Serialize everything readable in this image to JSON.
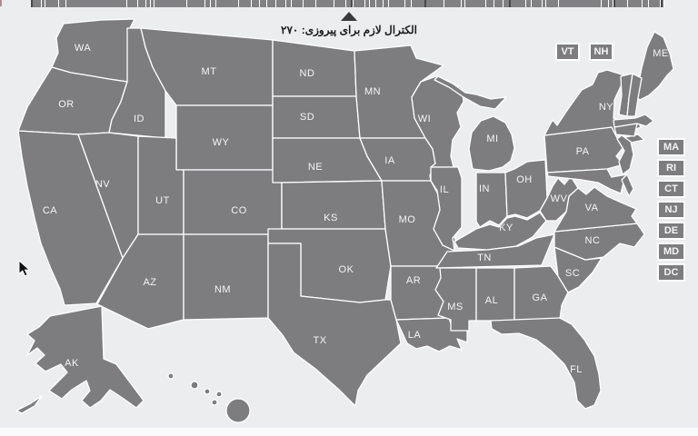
{
  "page": {
    "background": "#ecedee"
  },
  "electoral_bar": {
    "total_ev": 538,
    "colors": {
      "segment": "#818184",
      "gap": "#ffffff",
      "dark_tick": "#4a4a4c",
      "fragment": "#a98f90"
    },
    "dark_ticks_ev": [
      0,
      272,
      334,
      406,
      495,
      535
    ],
    "segments": [
      {
        "state": "AL",
        "ev": 9
      },
      {
        "state": "AK",
        "ev": 3
      },
      {
        "state": "AZ",
        "ev": 11
      },
      {
        "state": "AR",
        "ev": 6
      },
      {
        "state": "CA",
        "ev": 55
      },
      {
        "state": "CO",
        "ev": 9
      },
      {
        "state": "CT",
        "ev": 7
      },
      {
        "state": "DE",
        "ev": 3
      },
      {
        "state": "DC",
        "ev": 3
      },
      {
        "state": "FL",
        "ev": 29
      },
      {
        "state": "GA",
        "ev": 16
      },
      {
        "state": "HI",
        "ev": 4
      },
      {
        "state": "ID",
        "ev": 4
      },
      {
        "state": "IL",
        "ev": 20
      },
      {
        "state": "IN",
        "ev": 11
      },
      {
        "state": "IA",
        "ev": 6
      },
      {
        "state": "KS",
        "ev": 6
      },
      {
        "state": "KY",
        "ev": 8
      },
      {
        "state": "LA",
        "ev": 8
      },
      {
        "state": "ME",
        "ev": 4
      },
      {
        "state": "MD",
        "ev": 10
      },
      {
        "state": "MA",
        "ev": 11
      },
      {
        "state": "MI",
        "ev": 16
      },
      {
        "state": "MN",
        "ev": 10
      },
      {
        "state": "MS",
        "ev": 6
      },
      {
        "state": "MO",
        "ev": 10
      },
      {
        "state": "MT",
        "ev": 3
      },
      {
        "state": "NE",
        "ev": 5
      },
      {
        "state": "NV",
        "ev": 6
      },
      {
        "state": "NH",
        "ev": 4
      },
      {
        "state": "NJ",
        "ev": 14
      },
      {
        "state": "NM",
        "ev": 5
      },
      {
        "state": "NY",
        "ev": 29
      },
      {
        "state": "NC",
        "ev": 15
      },
      {
        "state": "ND",
        "ev": 3
      },
      {
        "state": "OH",
        "ev": 18
      },
      {
        "state": "OK",
        "ev": 7
      },
      {
        "state": "OR",
        "ev": 7
      },
      {
        "state": "PA",
        "ev": 20
      },
      {
        "state": "RI",
        "ev": 4
      },
      {
        "state": "SC",
        "ev": 9
      },
      {
        "state": "SD",
        "ev": 3
      },
      {
        "state": "TN",
        "ev": 11
      },
      {
        "state": "TX",
        "ev": 38
      },
      {
        "state": "UT",
        "ev": 6
      },
      {
        "state": "VT",
        "ev": 3
      },
      {
        "state": "VA",
        "ev": 13
      },
      {
        "state": "WA",
        "ev": 12
      },
      {
        "state": "WV",
        "ev": 5
      },
      {
        "state": "WI",
        "ev": 10
      },
      {
        "state": "WY",
        "ev": 3
      }
    ]
  },
  "marker": {
    "value": 270,
    "label": "الکترال لازم برای پیروزی: ۲۷۰",
    "triangle_color": "#3a3a3c"
  },
  "map": {
    "colors": {
      "state_fill": "#7d7d80",
      "border": "#ffffff",
      "label": "#f5f5f6"
    },
    "state_labels": [
      "WA",
      "OR",
      "CA",
      "NV",
      "ID",
      "MT",
      "WY",
      "UT",
      "CO",
      "AZ",
      "NM",
      "ND",
      "SD",
      "NE",
      "KS",
      "OK",
      "TX",
      "MN",
      "IA",
      "MO",
      "AR",
      "LA",
      "WI",
      "IL",
      "MI",
      "IN",
      "OH",
      "KY",
      "TN",
      "MS",
      "AL",
      "GA",
      "FL",
      "SC",
      "NC",
      "VA",
      "WV",
      "PA",
      "NY",
      "ME",
      "AK"
    ]
  },
  "small_state_boxes": {
    "colors": {
      "fill": "#7d7d80",
      "border": "#ffffff",
      "text": "#f5f5f6"
    },
    "top": [
      "VT",
      "NH"
    ],
    "right": [
      "MA",
      "RI",
      "CT",
      "NJ",
      "DE",
      "MD",
      "DC"
    ]
  }
}
